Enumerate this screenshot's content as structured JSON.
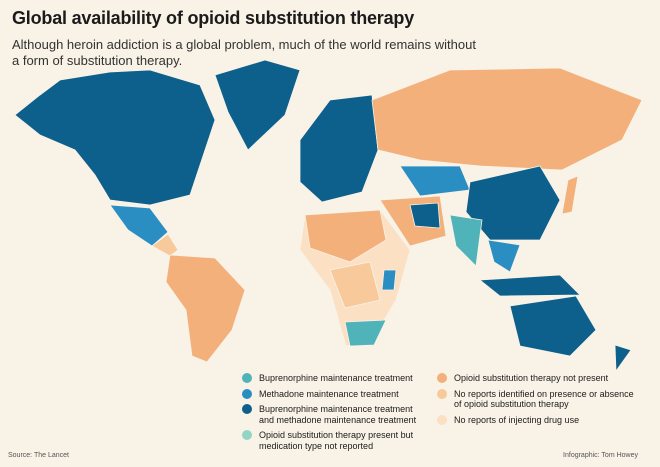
{
  "header": {
    "title": "Global availability of opioid substitution therapy",
    "subtitle": "Although heroin addiction is a global problem, much of the world remains without a form of substitution therapy."
  },
  "legend": {
    "items": [
      {
        "label": "Buprenorphine maintenance treatment",
        "color": "#4fb3b9"
      },
      {
        "label": "Methadone maintenance treatment",
        "color": "#2b8ec2"
      },
      {
        "label": "Buprenorphine maintenance treatment and methadone maintenance treatment",
        "color": "#0d5f8c"
      },
      {
        "label": "Opioid substitution therapy present but medication type not reported",
        "color": "#93d5c5"
      },
      {
        "label": "Opioid substitution therapy not present",
        "color": "#f3b07a"
      },
      {
        "label": "No reports identified on presence or absence of opioid substitution therapy",
        "color": "#f7c99b"
      },
      {
        "label": "No reports of injecting drug use",
        "color": "#fbe0c3"
      }
    ]
  },
  "footer": {
    "source": "Source: The Lancet",
    "credit": "Infographic: Tom Howey"
  }
}
